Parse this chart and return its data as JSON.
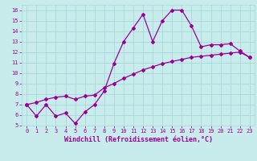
{
  "xlabel": "Windchill (Refroidissement éolien,°C)",
  "bg_color": "#c8ecec",
  "line_color": "#990099",
  "grid_color": "#a8d8d8",
  "xlim": [
    -0.5,
    23.5
  ],
  "ylim": [
    5,
    16.5
  ],
  "xticks": [
    0,
    1,
    2,
    3,
    4,
    5,
    6,
    7,
    8,
    9,
    10,
    11,
    12,
    13,
    14,
    15,
    16,
    17,
    18,
    19,
    20,
    21,
    22,
    23
  ],
  "yticks": [
    5,
    6,
    7,
    8,
    9,
    10,
    11,
    12,
    13,
    14,
    15,
    16
  ],
  "line1_x": [
    0,
    1,
    2,
    3,
    4,
    5,
    6,
    7,
    8,
    9,
    10,
    11,
    12,
    13,
    14,
    15,
    16,
    17,
    18,
    19,
    20,
    21,
    22,
    23
  ],
  "line1_y": [
    7.0,
    5.9,
    7.0,
    5.9,
    6.2,
    5.2,
    6.3,
    7.0,
    8.3,
    10.9,
    13.0,
    14.3,
    15.6,
    13.0,
    15.0,
    16.0,
    16.0,
    14.5,
    12.5,
    12.7,
    12.7,
    12.8,
    12.1,
    11.5
  ],
  "line2_x": [
    0,
    1,
    2,
    3,
    4,
    5,
    6,
    7,
    8,
    9,
    10,
    11,
    12,
    13,
    14,
    15,
    16,
    17,
    18,
    19,
    20,
    21,
    22,
    23
  ],
  "line2_y": [
    7.0,
    7.2,
    7.5,
    7.7,
    7.8,
    7.5,
    7.8,
    7.9,
    8.6,
    9.0,
    9.5,
    9.9,
    10.3,
    10.6,
    10.9,
    11.1,
    11.3,
    11.5,
    11.6,
    11.7,
    11.8,
    11.9,
    12.0,
    11.5
  ],
  "marker": "D",
  "markersize": 2,
  "linewidth": 0.9,
  "tick_fontsize": 5,
  "label_fontsize": 6
}
